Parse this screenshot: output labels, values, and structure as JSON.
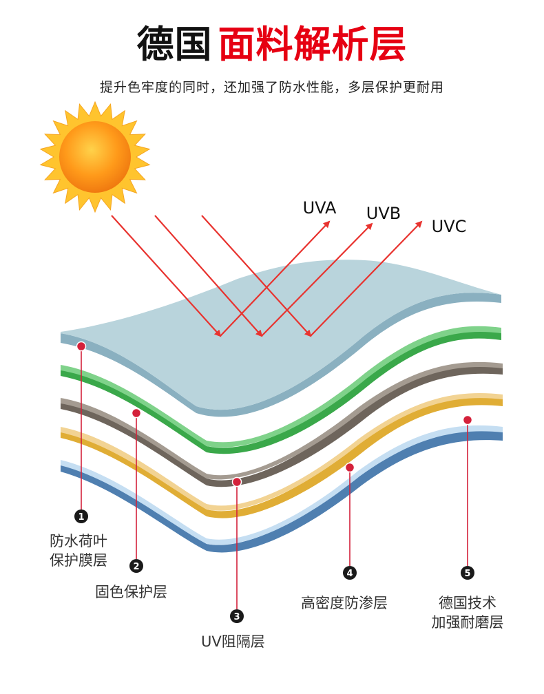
{
  "header": {
    "title_black": "德国",
    "title_red": "面料解析层",
    "subtitle": "提升色牢度的同时，还加强了防水性能，多层保护更耐用"
  },
  "colors": {
    "title_red": "#e60012",
    "ray_red": "#e8332f",
    "marker_red": "#d4213a",
    "layer1": "#b9d4dc",
    "layer2": "#7fd28a",
    "layer3": "#a49b91",
    "layer4": "#f2d393",
    "layer5": "#c5def2"
  },
  "sun": {
    "icon": "sun-icon"
  },
  "uv": [
    {
      "label": "UVA"
    },
    {
      "label": "UVB"
    },
    {
      "label": "UVC"
    }
  ],
  "layers": [
    {
      "number": "1",
      "line1": "防水荷叶",
      "line2": "保护膜层"
    },
    {
      "number": "2",
      "label": "固色保护层"
    },
    {
      "number": "3",
      "label": "UV阻隔层"
    },
    {
      "number": "4",
      "label": "高密度防渗层"
    },
    {
      "number": "5",
      "line1": "德国技术",
      "line2": "加强耐磨层"
    }
  ]
}
